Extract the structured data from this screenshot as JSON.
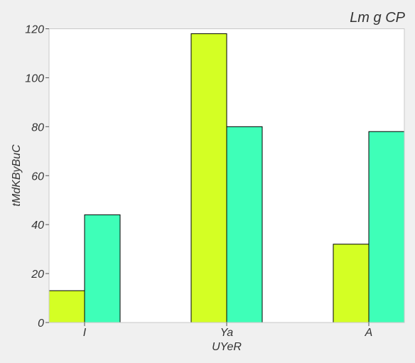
{
  "chart_data": {
    "type": "bar",
    "title": "Lm g CP",
    "xlabel": "UYeR",
    "ylabel": "tMdKByBuC",
    "categories": [
      "I",
      "Ya",
      "A"
    ],
    "series": [
      {
        "values": [
          13,
          118,
          32
        ],
        "color": "#d4ff24"
      },
      {
        "values": [
          44,
          80,
          78
        ],
        "color": "#3effb8"
      }
    ],
    "ylim": [
      0,
      120
    ],
    "yticks": [
      "0",
      "20",
      "40",
      "60",
      "80",
      "100",
      "120"
    ],
    "grid": false,
    "legend": "none"
  },
  "colors": {
    "figure_background": "#f0f0f0",
    "plot_background": "#ffffff",
    "bar_edge": "#000000"
  }
}
